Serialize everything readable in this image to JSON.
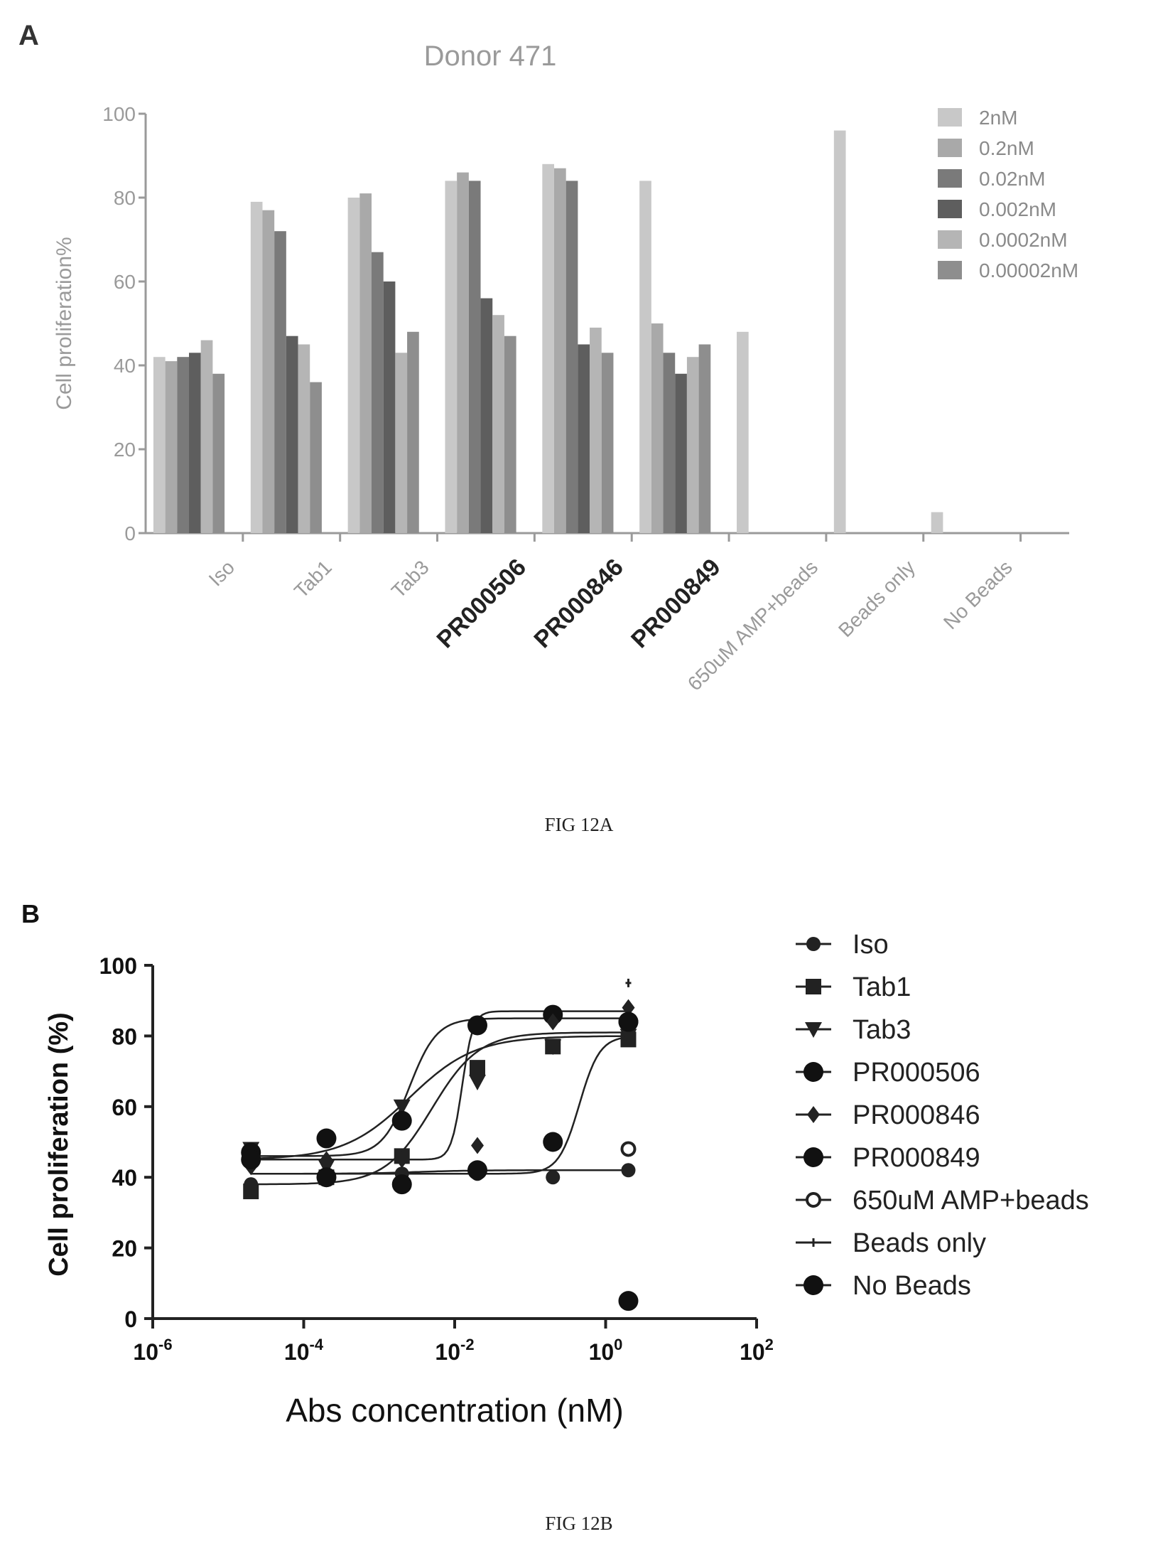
{
  "figure": {
    "panel_a_letter": "A",
    "panel_b_letter": "B",
    "caption_a": "FIG 12A",
    "caption_b": "FIG 12B"
  },
  "chart_data": [
    {
      "type": "bar",
      "title": "Donor 471",
      "ylabel": "Cell proliferation%",
      "xlabel": "",
      "ylim": [
        0,
        100
      ],
      "yticks": [
        0,
        20,
        40,
        60,
        80,
        100
      ],
      "legend_position": "top-right",
      "categories": [
        "Iso",
        "Tab1",
        "Tab3",
        "PR000506",
        "PR000846",
        "PR000849",
        "650uM AMP+beads",
        "Beads only",
        "No Beads"
      ],
      "bold_categories": [
        "PR000506",
        "PR000846",
        "PR000849"
      ],
      "series": [
        {
          "name": "2nM",
          "values": [
            42,
            79,
            80,
            84,
            88,
            84,
            48,
            96,
            5
          ],
          "color": "#c8c8c8"
        },
        {
          "name": "0.2nM",
          "values": [
            41,
            77,
            81,
            86,
            87,
            50,
            null,
            null,
            null
          ],
          "color": "#a9a9a9"
        },
        {
          "name": "0.02nM",
          "values": [
            42,
            72,
            67,
            84,
            84,
            43,
            null,
            null,
            null
          ],
          "color": "#7a7a7a"
        },
        {
          "name": "0.002nM",
          "values": [
            43,
            47,
            60,
            56,
            45,
            38,
            null,
            null,
            null
          ],
          "color": "#5e5e5e"
        },
        {
          "name": "0.0002nM",
          "values": [
            46,
            45,
            43,
            52,
            49,
            42,
            null,
            null,
            null
          ],
          "color": "#b5b5b5"
        },
        {
          "name": "0.00002nM",
          "values": [
            38,
            36,
            48,
            47,
            43,
            45,
            null,
            null,
            null
          ],
          "color": "#8e8e8e"
        }
      ]
    },
    {
      "type": "scatter",
      "title": "",
      "xlabel": "Abs concentration (nM)",
      "ylabel": "Cell proliferation (%)",
      "xscale": "log",
      "xlim": [
        1e-06,
        100
      ],
      "xticks": [
        1e-06,
        0.0001,
        0.01,
        1,
        100
      ],
      "xtick_labels": [
        {
          "base": "10",
          "exp": "-6"
        },
        {
          "base": "10",
          "exp": "-4"
        },
        {
          "base": "10",
          "exp": "-2"
        },
        {
          "base": "10",
          "exp": "0"
        },
        {
          "base": "10",
          "exp": "2"
        }
      ],
      "ylim": [
        0,
        100
      ],
      "yticks": [
        0,
        20,
        40,
        60,
        80,
        100
      ],
      "legend_position": "right",
      "x": [
        2e-05,
        0.0002,
        0.002,
        0.02,
        0.2,
        2
      ],
      "series": [
        {
          "name": "Iso",
          "marker": "circle",
          "values": [
            38,
            40,
            41,
            41,
            40,
            42
          ]
        },
        {
          "name": "Tab1",
          "marker": "square",
          "values": [
            36,
            40,
            46,
            71,
            77,
            79
          ]
        },
        {
          "name": "Tab3",
          "marker": "triangle-down",
          "values": [
            48,
            43,
            60,
            67,
            77,
            80
          ]
        },
        {
          "name": "PR000506",
          "marker": "circle-large",
          "values": [
            47,
            51,
            56,
            83,
            86,
            84
          ]
        },
        {
          "name": "PR000846",
          "marker": "diamond",
          "values": [
            43,
            45,
            45,
            49,
            84,
            88
          ]
        },
        {
          "name": "PR000849",
          "marker": "circle-large",
          "values": [
            45,
            40,
            38,
            42,
            50,
            84
          ]
        },
        {
          "name": "650uM AMP+beads",
          "marker": "open-circle",
          "x": [
            2
          ],
          "values": [
            48
          ]
        },
        {
          "name": "Beads only",
          "marker": "tick",
          "x": [
            2
          ],
          "values": [
            95
          ]
        },
        {
          "name": "No Beads",
          "marker": "circle-large",
          "x": [
            2
          ],
          "values": [
            5
          ]
        }
      ]
    }
  ]
}
